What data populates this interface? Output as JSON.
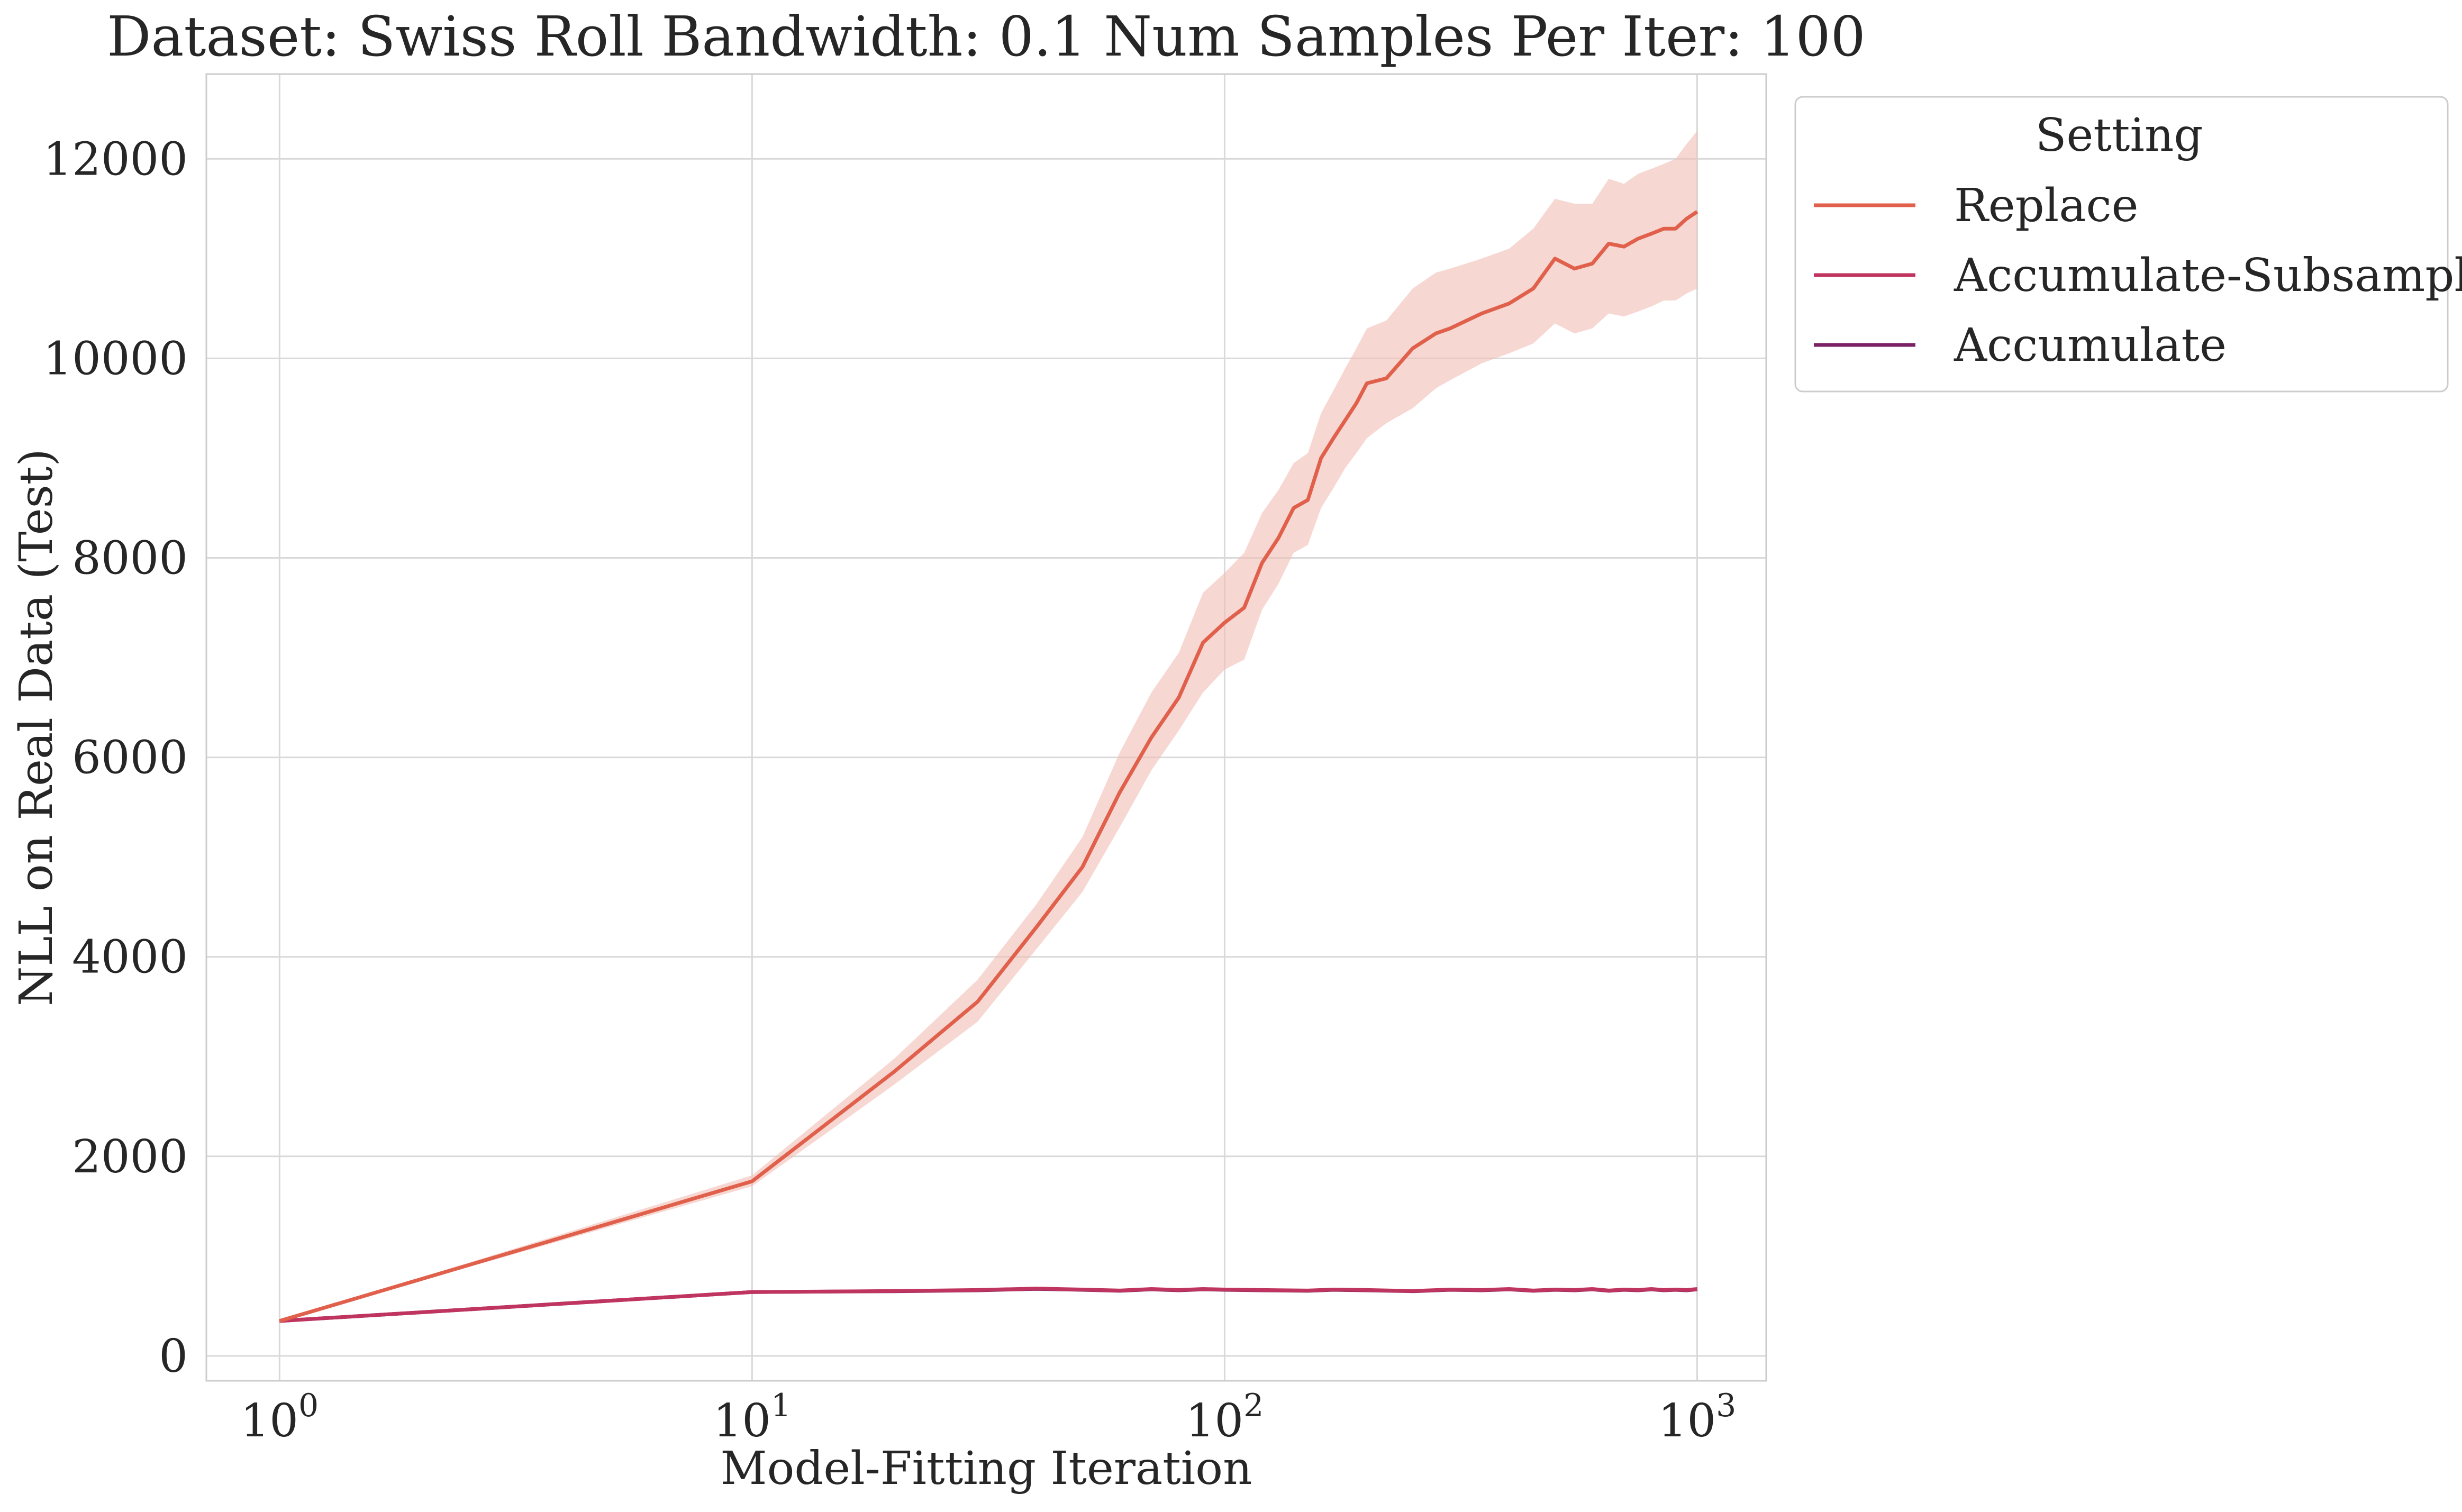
{
  "chart_data": {
    "type": "line",
    "title": "Dataset: Swiss Roll Bandwidth: 0.1 Num Samples Per Iter: 100",
    "xlabel": "Model-Fitting Iteration",
    "ylabel": "NLL on Real Data (Test)",
    "xscale": "log",
    "xlim": [
      0.7,
      1400
    ],
    "ylim": [
      -250,
      12850
    ],
    "xticks": [
      1,
      10,
      100,
      1000
    ],
    "xtick_labels": [
      [
        "10",
        "0"
      ],
      [
        "10",
        "1"
      ],
      [
        "10",
        "2"
      ],
      [
        "10",
        "3"
      ]
    ],
    "yticks": [
      0,
      2000,
      4000,
      6000,
      8000,
      10000,
      12000
    ],
    "ytick_labels": [
      "0",
      "2000",
      "4000",
      "6000",
      "8000",
      "10000",
      "12000"
    ],
    "grid": true,
    "legend": {
      "title": "Setting",
      "placement": "upper-left-outside"
    },
    "series": [
      {
        "name": "Replace",
        "color": "#e0604c",
        "band_color": "#f2bdb4",
        "x": [
          1,
          10,
          20,
          30,
          40,
          50,
          60,
          70,
          80,
          90,
          100,
          110,
          120,
          130,
          140,
          150,
          160,
          170,
          180,
          190,
          200,
          220,
          250,
          280,
          300,
          350,
          400,
          450,
          500,
          550,
          600,
          650,
          700,
          750,
          800,
          850,
          900,
          950,
          1000
        ],
        "y": [
          350,
          1750,
          2850,
          3550,
          4300,
          4900,
          5650,
          6200,
          6600,
          7150,
          7350,
          7500,
          7950,
          8200,
          8500,
          8580,
          9000,
          9200,
          9380,
          9550,
          9750,
          9800,
          10100,
          10250,
          10300,
          10450,
          10550,
          10700,
          11000,
          10900,
          10950,
          11150,
          11120,
          11200,
          11250,
          11300,
          11300,
          11400,
          11470
        ],
        "lower": [
          350,
          1700,
          2720,
          3350,
          4080,
          4650,
          5300,
          5870,
          6270,
          6650,
          6880,
          6980,
          7480,
          7740,
          8050,
          8130,
          8500,
          8700,
          8900,
          9050,
          9200,
          9350,
          9500,
          9700,
          9780,
          9950,
          10050,
          10150,
          10350,
          10250,
          10300,
          10450,
          10420,
          10470,
          10520,
          10580,
          10580,
          10650,
          10700
        ],
        "upper": [
          350,
          1810,
          2980,
          3770,
          4530,
          5200,
          6050,
          6650,
          7050,
          7650,
          7850,
          8050,
          8450,
          8680,
          8950,
          9050,
          9450,
          9680,
          9900,
          10100,
          10300,
          10380,
          10700,
          10860,
          10900,
          11000,
          11100,
          11300,
          11600,
          11550,
          11550,
          11800,
          11750,
          11850,
          11900,
          11950,
          12000,
          12150,
          12280
        ]
      },
      {
        "name": "Accumulate-Subsample",
        "color": "#c0355f",
        "x": [
          1,
          10,
          20,
          30,
          40,
          50,
          60,
          70,
          80,
          90,
          100,
          120,
          150,
          170,
          200,
          250,
          300,
          350,
          400,
          450,
          500,
          550,
          600,
          650,
          700,
          750,
          800,
          850,
          900,
          950,
          1000
        ],
        "y": [
          350,
          640,
          650,
          660,
          675,
          665,
          655,
          670,
          660,
          670,
          665,
          660,
          655,
          665,
          660,
          650,
          665,
          660,
          670,
          655,
          665,
          660,
          670,
          655,
          665,
          660,
          670,
          660,
          665,
          660,
          670
        ]
      },
      {
        "name": "Accumulate",
        "color": "#7b2166",
        "x": [
          1,
          10,
          20,
          30,
          40,
          50,
          60,
          70,
          80,
          90,
          100,
          120,
          150,
          170,
          200,
          250,
          300,
          350,
          400,
          450,
          500,
          550,
          600,
          650,
          700,
          750,
          800,
          850,
          900,
          950,
          1000
        ],
        "y": [
          350,
          640,
          648,
          657,
          672,
          662,
          652,
          667,
          657,
          667,
          662,
          657,
          652,
          662,
          657,
          648,
          662,
          657,
          667,
          652,
          662,
          657,
          667,
          652,
          662,
          657,
          667,
          657,
          662,
          657,
          667
        ]
      }
    ]
  }
}
